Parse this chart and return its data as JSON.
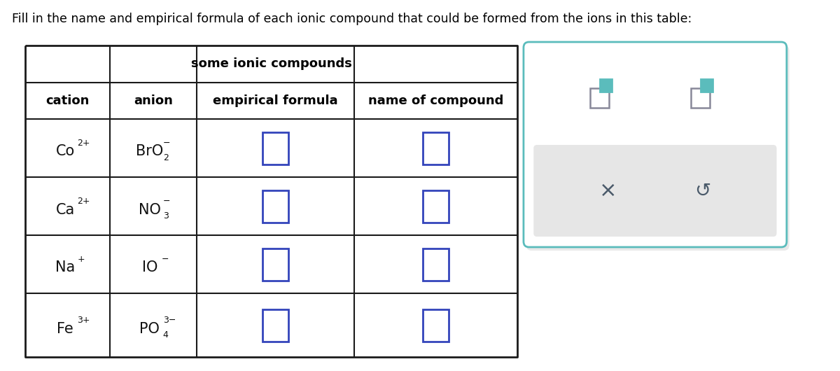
{
  "title_text": "Fill in the name and empirical formula of each ionic compound that could be formed from the ions in this table:",
  "table_title": "some ionic compounds",
  "col_headers": [
    "cation",
    "anion",
    "empirical formula",
    "name of compound"
  ],
  "rows": [
    {
      "cation_main": "Co",
      "cation_sup": "2+",
      "anion_main": "BrO",
      "anion_sub": "2",
      "anion_sup": "−"
    },
    {
      "cation_main": "Ca",
      "cation_sup": "2+",
      "anion_main": "NO",
      "anion_sub": "3",
      "anion_sup": "−"
    },
    {
      "cation_main": "Na",
      "cation_sup": "+",
      "anion_main": "IO",
      "anion_sub": "",
      "anion_sup": "−"
    },
    {
      "cation_main": "Fe",
      "cation_sup": "3+",
      "anion_main": "PO",
      "anion_sub": "4",
      "anion_sup": "3−"
    }
  ],
  "bg_color": "#ffffff",
  "table_border_color": "#1a1a1a",
  "header_text_color": "#000000",
  "cell_text_color": "#111111",
  "input_box_color": "#3344bb",
  "input_box_fill": "#ffffff",
  "widget_border_color": "#5bbcbc",
  "widget_bg": "#ffffff",
  "toolbar_bg": "#e6e6e6",
  "icon_big_color": "#888899",
  "icon_small_color": "#5bbcbc",
  "x_color": "#4a5a6a",
  "undo_color": "#4a5a6a",
  "title_fontsize": 12.5,
  "table_title_fontsize": 13,
  "header_fontsize": 13,
  "cell_fontsize": 15,
  "cell_sup_fontsize": 9,
  "cell_sub_fontsize": 9
}
